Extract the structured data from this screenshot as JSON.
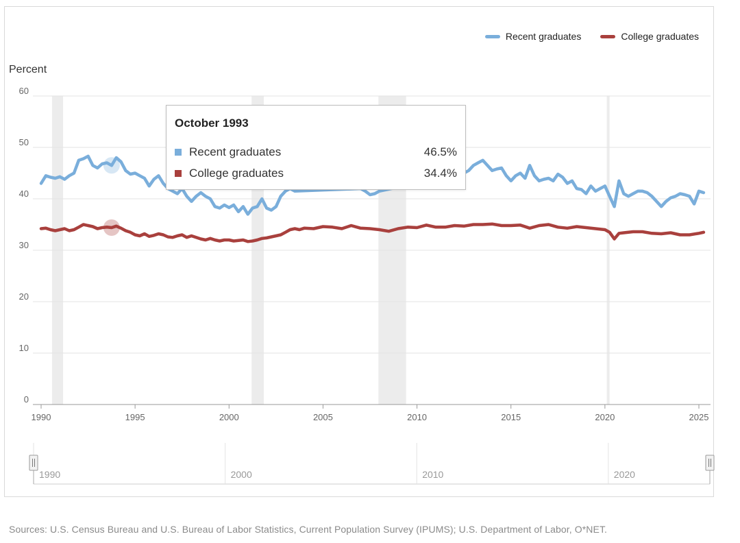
{
  "legend": {
    "recent_label": "Recent graduates",
    "college_label": "College graduates"
  },
  "y_axis_label": "Percent",
  "tooltip": {
    "title": "October 1993",
    "rows": [
      {
        "name": "Recent graduates",
        "value": "46.5%",
        "color": "#7aaedb"
      },
      {
        "name": "College graduates",
        "value": "34.4%",
        "color": "#a9403d"
      }
    ]
  },
  "navigator": {
    "labels": [
      "1990",
      "2000",
      "2010",
      "2020"
    ]
  },
  "sources": "Sources: U.S. Census Bureau and U.S. Bureau of Labor Statistics, Current Population Survey (IPUMS); U.S. Department of Labor, O*NET.",
  "chart_data": {
    "type": "line",
    "xlabel": "",
    "ylabel": "Percent",
    "xlim": [
      1990,
      2025.5
    ],
    "ylim": [
      0,
      60
    ],
    "y_ticks": [
      0,
      10,
      20,
      30,
      40,
      50,
      60
    ],
    "x_ticks": [
      1990,
      1995,
      2000,
      2005,
      2010,
      2015,
      2020,
      2025
    ],
    "grid": true,
    "legend_position": "top-right",
    "colors": {
      "recent": "#7aaedb",
      "college": "#a9403d",
      "recession": "#ececec"
    },
    "recessions": [
      [
        1990.58,
        1991.17
      ],
      [
        2001.2,
        2001.85
      ],
      [
        2007.95,
        2009.42
      ],
      [
        2020.1,
        2020.25
      ]
    ],
    "highlight_x": 1993.75,
    "series": [
      {
        "name": "Recent graduates",
        "x": [
          1990,
          1990.25,
          1990.5,
          1990.75,
          1991,
          1991.25,
          1991.5,
          1991.75,
          1992,
          1992.25,
          1992.5,
          1992.75,
          1993,
          1993.25,
          1993.5,
          1993.75,
          1994,
          1994.25,
          1994.5,
          1994.75,
          1995,
          1995.25,
          1995.5,
          1995.75,
          1996,
          1996.25,
          1996.5,
          1996.75,
          1997,
          1997.25,
          1997.5,
          1997.75,
          1998,
          1998.25,
          1998.5,
          1998.75,
          1999,
          1999.25,
          1999.5,
          1999.75,
          2000,
          2000.25,
          2000.5,
          2000.75,
          2001,
          2001.25,
          2001.5,
          2001.75,
          2002,
          2002.25,
          2002.5,
          2002.75,
          2003,
          2003.25,
          2003.5,
          2007,
          2007.25,
          2007.5,
          2007.75,
          2008,
          2012.5,
          2012.75,
          2013,
          2013.25,
          2013.5,
          2013.75,
          2014,
          2014.25,
          2014.5,
          2014.75,
          2015,
          2015.25,
          2015.5,
          2015.75,
          2016,
          2016.25,
          2016.5,
          2016.75,
          2017,
          2017.25,
          2017.5,
          2017.75,
          2018,
          2018.25,
          2018.5,
          2018.75,
          2019,
          2019.25,
          2019.5,
          2019.75,
          2020,
          2020.25,
          2020.5,
          2020.75,
          2021,
          2021.25,
          2021.5,
          2021.75,
          2022,
          2022.25,
          2022.5,
          2022.75,
          2023,
          2023.25,
          2023.5,
          2023.75,
          2024,
          2024.25,
          2024.5,
          2024.75,
          2025,
          2025.25
        ],
        "values": [
          43.0,
          44.5,
          44.2,
          44.0,
          44.3,
          43.8,
          44.5,
          45.0,
          47.5,
          47.8,
          48.3,
          46.5,
          46.0,
          46.8,
          47.0,
          46.5,
          48.0,
          47.2,
          45.5,
          44.8,
          45.0,
          44.5,
          44.0,
          42.5,
          43.8,
          44.5,
          43.0,
          42.0,
          41.5,
          41.0,
          42.0,
          40.5,
          39.5,
          40.5,
          41.2,
          40.5,
          40.0,
          38.5,
          38.2,
          38.8,
          38.3,
          38.8,
          37.5,
          38.5,
          37.0,
          38.2,
          38.5,
          40.0,
          38.2,
          37.8,
          38.5,
          40.5,
          41.5,
          42.0,
          41.5,
          42.0,
          41.5,
          40.8,
          41.0,
          41.5,
          45.0,
          45.5,
          46.5,
          47.0,
          47.5,
          46.5,
          45.5,
          45.8,
          46.0,
          44.5,
          43.5,
          44.5,
          45.0,
          44.0,
          46.5,
          44.5,
          43.5,
          43.8,
          44.0,
          43.5,
          44.8,
          44.2,
          43.0,
          43.5,
          42.0,
          41.8,
          41.0,
          42.5,
          41.5,
          42.0,
          42.5,
          40.5,
          38.5,
          43.5,
          41.0,
          40.5,
          41.0,
          41.5,
          41.5,
          41.2,
          40.5,
          39.5,
          38.5,
          39.5,
          40.2,
          40.5,
          41.0,
          40.8,
          40.5,
          39.0,
          41.5,
          41.2
        ]
      },
      {
        "name": "College graduates",
        "x": [
          1990,
          1990.25,
          1990.5,
          1990.75,
          1991,
          1991.25,
          1991.5,
          1991.75,
          1992,
          1992.25,
          1992.5,
          1992.75,
          1993,
          1993.25,
          1993.5,
          1993.75,
          1994,
          1994.25,
          1994.5,
          1994.75,
          1995,
          1995.25,
          1995.5,
          1995.75,
          1996,
          1996.25,
          1996.5,
          1996.75,
          1997,
          1997.25,
          1997.5,
          1997.75,
          1998,
          1998.25,
          1998.5,
          1998.75,
          1999,
          1999.25,
          1999.5,
          1999.75,
          2000,
          2000.25,
          2000.5,
          2000.75,
          2001,
          2001.25,
          2001.5,
          2001.75,
          2002,
          2002.25,
          2002.5,
          2002.75,
          2003,
          2003.25,
          2003.5,
          2003.75,
          2004,
          2004.5,
          2005,
          2005.5,
          2006,
          2006.5,
          2007,
          2007.5,
          2008,
          2008.5,
          2009,
          2009.5,
          2010,
          2010.5,
          2011,
          2011.5,
          2012,
          2012.5,
          2013,
          2013.5,
          2014,
          2014.5,
          2015,
          2015.5,
          2016,
          2016.5,
          2017,
          2017.5,
          2018,
          2018.5,
          2019,
          2019.5,
          2020,
          2020.25,
          2020.5,
          2020.75,
          2021,
          2021.5,
          2022,
          2022.5,
          2023,
          2023.5,
          2024,
          2024.5,
          2025,
          2025.25
        ],
        "values": [
          34.2,
          34.3,
          34.0,
          33.8,
          34.0,
          34.2,
          33.8,
          34.0,
          34.5,
          35.0,
          34.8,
          34.6,
          34.2,
          34.4,
          34.5,
          34.4,
          34.7,
          34.3,
          33.8,
          33.5,
          33.0,
          32.8,
          33.2,
          32.7,
          32.9,
          33.2,
          33.0,
          32.6,
          32.5,
          32.8,
          33.0,
          32.5,
          32.8,
          32.5,
          32.2,
          32.0,
          32.3,
          32.0,
          31.8,
          32.0,
          32.0,
          31.8,
          31.9,
          32.0,
          31.7,
          31.8,
          32.0,
          32.3,
          32.4,
          32.6,
          32.8,
          33.0,
          33.5,
          34.0,
          34.2,
          34.0,
          34.3,
          34.2,
          34.6,
          34.5,
          34.2,
          34.8,
          34.3,
          34.2,
          34.0,
          33.7,
          34.2,
          34.5,
          34.4,
          34.9,
          34.5,
          34.5,
          34.8,
          34.7,
          35.0,
          35.0,
          35.1,
          34.8,
          34.8,
          34.9,
          34.3,
          34.8,
          35.0,
          34.5,
          34.3,
          34.6,
          34.4,
          34.2,
          34.0,
          33.5,
          32.2,
          33.3,
          33.4,
          33.6,
          33.6,
          33.3,
          33.2,
          33.4,
          33.0,
          33.0,
          33.3,
          33.5
        ]
      }
    ]
  }
}
